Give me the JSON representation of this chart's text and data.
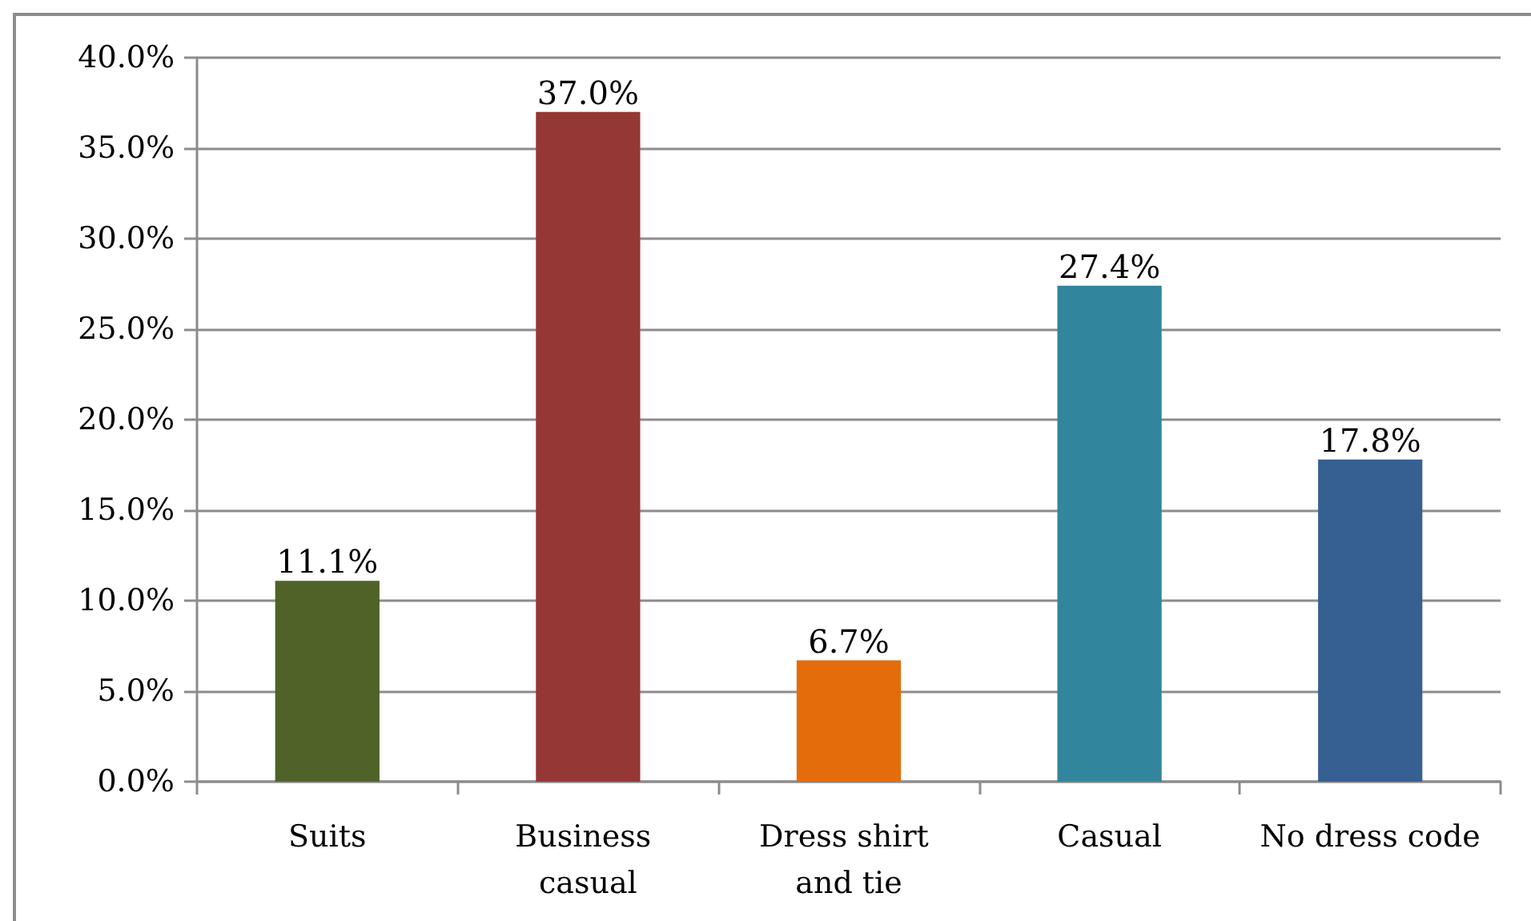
{
  "chart_data": {
    "type": "bar",
    "categories": [
      "Suits",
      "Business casual",
      "Dress shirt and tie",
      "Casual",
      "No dress code"
    ],
    "values": [
      11.1,
      37.0,
      6.7,
      27.4,
      17.8
    ],
    "colors": [
      "#4f6228",
      "#953735",
      "#e46c0a",
      "#31859c",
      "#376092"
    ],
    "value_labels": [
      "11.1%",
      "37.0%",
      "6.7%",
      "27.4%",
      "17.8%"
    ],
    "ylim": [
      0,
      40
    ],
    "yticks": [
      {
        "value": 0,
        "label": "0.0%"
      },
      {
        "value": 5,
        "label": "5.0%"
      },
      {
        "value": 10,
        "label": "10.0%"
      },
      {
        "value": 15,
        "label": "15.0%"
      },
      {
        "value": 20,
        "label": "20.0%"
      },
      {
        "value": 25,
        "label": "25.0%"
      },
      {
        "value": 30,
        "label": "30.0%"
      },
      {
        "value": 35,
        "label": "35.0%"
      },
      {
        "value": 40,
        "label": "40.0%"
      }
    ],
    "grid": "y"
  }
}
